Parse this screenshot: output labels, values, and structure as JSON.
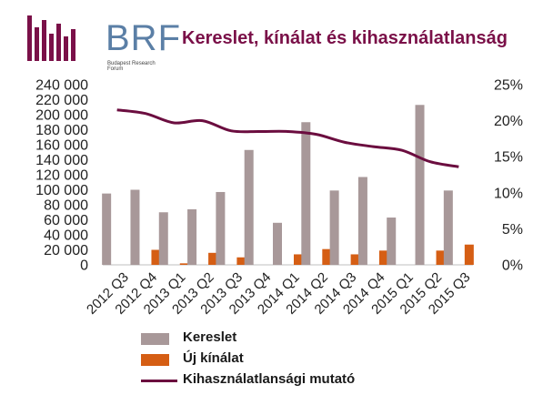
{
  "logo": {
    "text": "BRF",
    "subtext": "Budapest Research Forum"
  },
  "colors": {
    "demand": "#a89899",
    "supply": "#d55e14",
    "vacancy": "#6b0d3f",
    "title": "#7a1048",
    "logo": "#7a1048"
  },
  "chart_data": {
    "type": "bar",
    "title": "Kereslet, kínálat és kihasználatlanság",
    "categories": [
      "2012 Q3",
      "2012 Q4",
      "2013 Q1",
      "2013 Q2",
      "2013 Q3",
      "2013 Q4",
      "2014 Q1",
      "2014 Q2",
      "2014 Q3",
      "2014 Q4",
      "2015 Q1",
      "2015 Q2",
      "2015 Q3"
    ],
    "y_left": {
      "min": 0,
      "max": 240000,
      "step": 20000,
      "ticks": [
        "0",
        "20 000",
        "40 000",
        "60 000",
        "80 000",
        "100 000",
        "120 000",
        "140 000",
        "160 000",
        "180 000",
        "200 000",
        "220 000",
        "240 000"
      ]
    },
    "y_right": {
      "min": 0,
      "max": 25,
      "step": 5,
      "unit": "%",
      "ticks": [
        "0%",
        "5%",
        "10%",
        "15%",
        "20%",
        "25%"
      ]
    },
    "series": [
      {
        "name": "Kereslet",
        "type": "bar",
        "axis": "left",
        "values": [
          95000,
          100000,
          70000,
          74000,
          97000,
          153000,
          56000,
          190000,
          99000,
          117000,
          63000,
          213000,
          99000
        ]
      },
      {
        "name": "Új kínálat",
        "type": "bar",
        "axis": "left",
        "values": [
          0,
          20000,
          2000,
          16000,
          10000,
          0,
          14000,
          21000,
          14000,
          19000,
          0,
          19000,
          27000
        ]
      },
      {
        "name": "Kihasználatlansági mutató",
        "type": "line",
        "axis": "right",
        "values": [
          21.5,
          21.0,
          19.7,
          20.0,
          18.6,
          18.5,
          18.5,
          18.1,
          17.0,
          16.4,
          15.9,
          14.3,
          13.6
        ]
      }
    ],
    "legend_position": "bottom",
    "grid": false
  }
}
